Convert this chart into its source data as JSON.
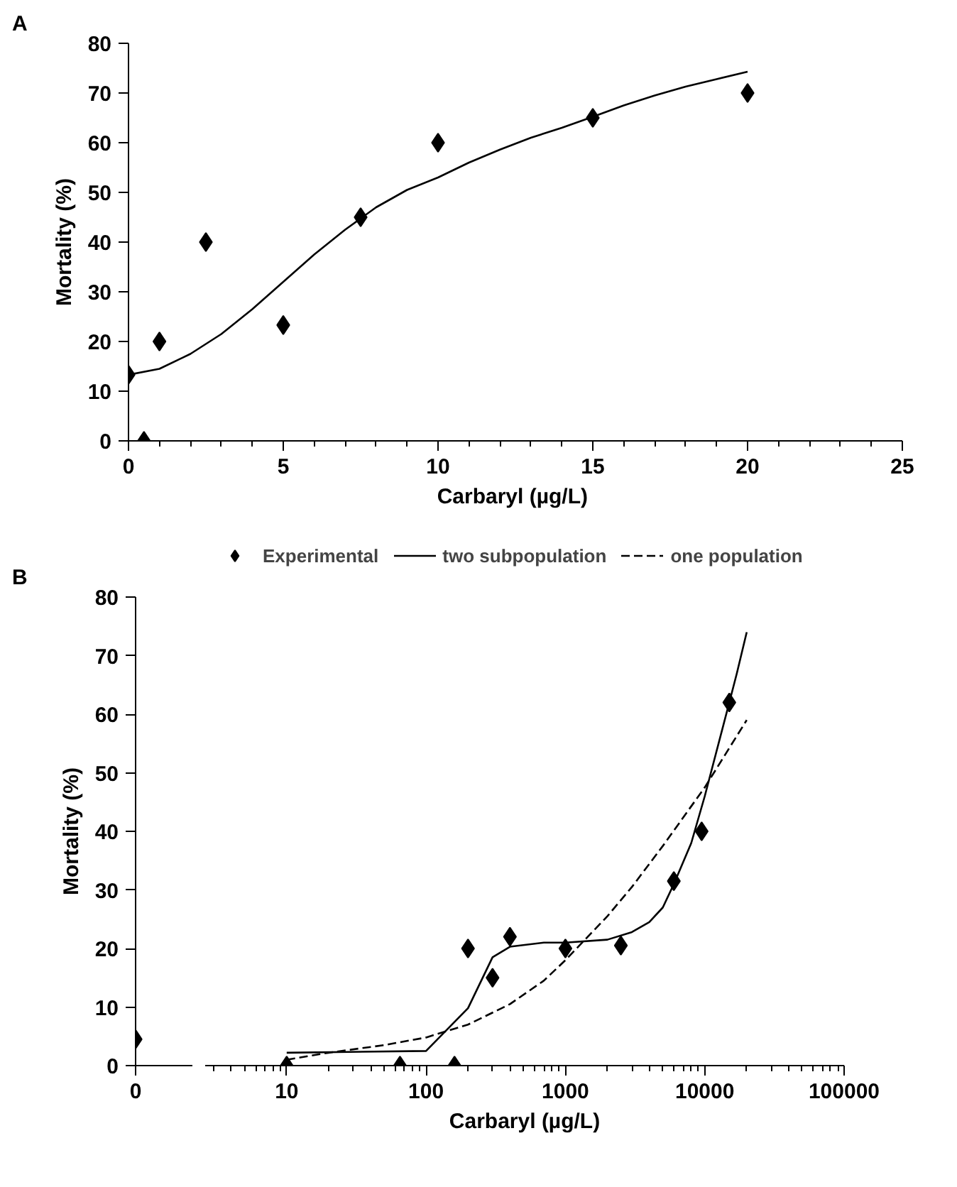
{
  "chart_data": [
    {
      "type": "scatter",
      "title": "A",
      "xlabel": "Carbaryl  (µg/L)",
      "ylabel": "Mortality (%)",
      "xlim": [
        0,
        25
      ],
      "ylim": [
        0,
        80
      ],
      "xticks": [
        0,
        {
          "value": 1,
          "label": null
        },
        {
          "value": 2,
          "label": null
        },
        {
          "value": 3,
          "label": null
        },
        {
          "value": 4,
          "label": null
        },
        5,
        {
          "value": 6,
          "label": null
        },
        {
          "value": 7,
          "label": null
        },
        {
          "value": 8,
          "label": null
        },
        {
          "value": 9,
          "label": null
        },
        10,
        {
          "value": 11,
          "label": null
        },
        {
          "value": 12,
          "label": null
        },
        {
          "value": 13,
          "label": null
        },
        {
          "value": 14,
          "label": null
        },
        15,
        {
          "value": 16,
          "label": null
        },
        {
          "value": 17,
          "label": null
        },
        {
          "value": 18,
          "label": null
        },
        {
          "value": 19,
          "label": null
        },
        20,
        {
          "value": 21,
          "label": null
        },
        {
          "value": 22,
          "label": null
        },
        {
          "value": 23,
          "label": null
        },
        {
          "value": 24,
          "label": null
        },
        25
      ],
      "yticks": [
        0,
        10,
        20,
        30,
        40,
        50,
        60,
        70,
        80
      ],
      "grid": false,
      "series": [
        {
          "marker": "diamond",
          "color": "#000000",
          "x": [
            0,
            0.5,
            1,
            2.5,
            5,
            7.5,
            10,
            15,
            20
          ],
          "values": [
            13.3,
            0,
            20,
            40,
            23.3,
            45,
            60,
            65,
            70
          ]
        },
        {
          "type": "line",
          "line_style": "solid",
          "color": "#000000",
          "x": [
            0,
            1,
            2,
            3,
            4,
            5,
            6,
            7,
            8,
            9,
            10,
            11,
            12,
            13,
            14,
            15,
            16,
            17,
            18,
            19,
            20
          ],
          "values": [
            13.3,
            14.5,
            17.5,
            21.5,
            26.5,
            32,
            37.5,
            42.5,
            47,
            50.5,
            53,
            56,
            58.6,
            61,
            63,
            65.2,
            67.5,
            69.5,
            71.3,
            72.8,
            74.3
          ]
        }
      ]
    },
    {
      "type": "scatter",
      "title": "B",
      "ylabel": "Mortality (%)",
      "categories": [
        "0"
      ],
      "ylim": [
        0,
        80
      ],
      "yticks": [
        0,
        10,
        20,
        30,
        40,
        50,
        60,
        70,
        80
      ],
      "grid": false,
      "series": [
        {
          "marker": "diamond",
          "color": "#000000",
          "values": [
            4.5
          ]
        }
      ]
    },
    {
      "type": "scatter",
      "xlabel": "Carbaryl (µg/L)",
      "log": "x",
      "xlim": [
        2.6,
        100000
      ],
      "ylim": [
        0,
        80
      ],
      "tick_labels": "x",
      "grid": false,
      "legend": "top",
      "xticks": [
        {
          "value": 3,
          "label": null
        },
        {
          "value": 4,
          "label": null
        },
        {
          "value": 5,
          "label": null
        },
        {
          "value": 6,
          "label": null
        },
        {
          "value": 7,
          "label": null
        },
        {
          "value": 8,
          "label": null
        },
        {
          "value": 9,
          "label": null
        },
        10,
        {
          "value": 20,
          "label": null
        },
        {
          "value": 30,
          "label": null
        },
        {
          "value": 40,
          "label": null
        },
        {
          "value": 50,
          "label": null
        },
        {
          "value": 60,
          "label": null
        },
        {
          "value": 70,
          "label": null
        },
        {
          "value": 80,
          "label": null
        },
        {
          "value": 90,
          "label": null
        },
        100,
        {
          "value": 200,
          "label": null
        },
        {
          "value": 300,
          "label": null
        },
        {
          "value": 400,
          "label": null
        },
        {
          "value": 500,
          "label": null
        },
        {
          "value": 600,
          "label": null
        },
        {
          "value": 700,
          "label": null
        },
        {
          "value": 800,
          "label": null
        },
        {
          "value": 900,
          "label": null
        },
        1000,
        {
          "value": 2000,
          "label": null
        },
        {
          "value": 3000,
          "label": null
        },
        {
          "value": 4000,
          "label": null
        },
        {
          "value": 5000,
          "label": null
        },
        {
          "value": 6000,
          "label": null
        },
        {
          "value": 7000,
          "label": null
        },
        {
          "value": 8000,
          "label": null
        },
        {
          "value": 9000,
          "label": null
        },
        10000,
        {
          "value": 20000,
          "label": null
        },
        {
          "value": 30000,
          "label": null
        },
        {
          "value": 40000,
          "label": null
        },
        {
          "value": 50000,
          "label": null
        },
        {
          "value": 60000,
          "label": null
        },
        {
          "value": 70000,
          "label": null
        },
        {
          "value": 80000,
          "label": null
        },
        {
          "value": 90000,
          "label": null
        },
        100000
      ],
      "series": [
        {
          "name": "Experimental",
          "marker": "diamond",
          "color": "#000000",
          "x": [
            10,
            65,
            160,
            200,
            300,
            400,
            1000,
            2500,
            6000,
            9500,
            15000
          ],
          "values": [
            0,
            0,
            0,
            20,
            15,
            22,
            20,
            20.5,
            31.5,
            40,
            62
          ]
        },
        {
          "type": "line",
          "name": "two subpopulation",
          "line_style": "solid",
          "color": "#000000",
          "x": [
            10,
            100,
            200,
            300,
            400,
            700,
            1000,
            2000,
            3000,
            4000,
            5000,
            6000,
            8000,
            10000,
            15000,
            17000,
            20000
          ],
          "values": [
            2.2,
            2.5,
            9.8,
            18.5,
            20.3,
            21,
            21,
            21.5,
            22.8,
            24.5,
            27,
            31,
            38,
            46,
            62,
            67,
            74
          ]
        },
        {
          "type": "line",
          "name": "one population",
          "line_style": "dashed",
          "color": "#000000",
          "x": [
            10,
            20,
            50,
            100,
            200,
            400,
            700,
            1000,
            2000,
            3000,
            5000,
            10000,
            20000
          ],
          "values": [
            1,
            2.2,
            3.5,
            4.8,
            7,
            10.5,
            14.5,
            18,
            25.5,
            30.5,
            37.5,
            47.5,
            59
          ]
        }
      ]
    }
  ]
}
